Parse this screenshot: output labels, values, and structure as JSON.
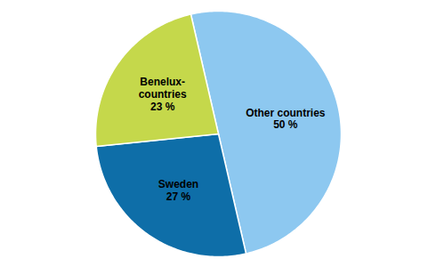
{
  "chart_data": {
    "type": "pie",
    "categories": [
      "Other countries",
      "Sweden",
      "Benelux-countries"
    ],
    "values": [
      50,
      27,
      23
    ],
    "value_labels": [
      "50 %",
      "27 %",
      "23 %"
    ],
    "colors": [
      "#8dc8f0",
      "#0e6ea8",
      "#c5d84b"
    ],
    "data_labels": true
  }
}
